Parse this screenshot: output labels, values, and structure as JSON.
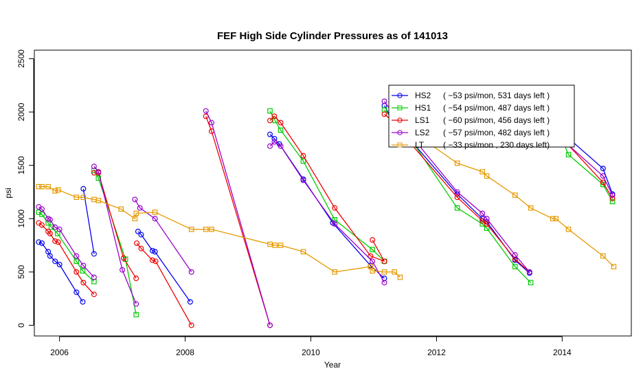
{
  "chart_data": {
    "type": "line",
    "title": "FEF High Side Cylinder Pressures as of  141013",
    "xlabel": "Year",
    "ylabel": "psi",
    "xlim": [
      2005.6,
      2015.1
    ],
    "ylim": [
      -100,
      2580
    ],
    "xticks": [
      2006,
      2008,
      2010,
      2012,
      2014
    ],
    "yticks": [
      0,
      500,
      1000,
      1500,
      2000,
      2500
    ],
    "grid": false,
    "legend_position": "top-right",
    "series": [
      {
        "name": "HS2",
        "legend_text": "( −53 psi/mon, 531 days left )",
        "color": "#0000ee",
        "marker": "circle",
        "segments": [
          [
            [
              2005.67,
              780
            ],
            [
              2005.72,
              770
            ],
            [
              2005.82,
              690
            ],
            [
              2005.85,
              650
            ],
            [
              2005.93,
              600
            ],
            [
              2006.0,
              570
            ],
            [
              2006.27,
              310
            ],
            [
              2006.37,
              220
            ]
          ],
          [
            [
              2006.38,
              1280
            ],
            [
              2006.55,
              670
            ]
          ],
          [
            [
              2007.25,
              880
            ],
            [
              2007.3,
              850
            ],
            [
              2007.48,
              700
            ],
            [
              2007.52,
              690
            ],
            [
              2008.08,
              220
            ]
          ],
          [
            [
              2009.35,
              1790
            ],
            [
              2009.42,
              1750
            ],
            [
              2009.5,
              1700
            ],
            [
              2009.88,
              1370
            ],
            [
              2010.35,
              960
            ],
            [
              2010.95,
              560
            ],
            [
              2011.17,
              440
            ]
          ],
          [
            [
              2011.17,
              2060
            ],
            [
              2011.3,
              1920
            ],
            [
              2011.45,
              1830
            ],
            [
              2012.33,
              1230
            ],
            [
              2012.73,
              1000
            ],
            [
              2012.8,
              970
            ],
            [
              2013.25,
              610
            ],
            [
              2013.48,
              490
            ]
          ],
          [
            [
              2013.85,
              1930
            ],
            [
              2014.05,
              1780
            ],
            [
              2014.65,
              1470
            ],
            [
              2014.8,
              1230
            ]
          ]
        ]
      },
      {
        "name": "HS1",
        "legend_text": "( −54 psi/mon, 487 days left )",
        "color": "#00cc00",
        "marker": "square",
        "segments": [
          [
            [
              2005.67,
              1060
            ],
            [
              2005.72,
              1040
            ],
            [
              2005.82,
              960
            ],
            [
              2005.87,
              920
            ],
            [
              2005.97,
              860
            ],
            [
              2006.27,
              600
            ],
            [
              2006.37,
              510
            ],
            [
              2006.55,
              410
            ]
          ],
          [
            [
              2006.55,
              1450
            ],
            [
              2006.62,
              1380
            ],
            [
              2007.05,
              620
            ],
            [
              2007.22,
              100
            ]
          ],
          [
            [
              2009.35,
              2010
            ],
            [
              2009.43,
              1920
            ],
            [
              2009.52,
              1830
            ],
            [
              2009.88,
              1540
            ],
            [
              2010.38,
              990
            ],
            [
              2010.98,
              710
            ],
            [
              2011.17,
              600
            ]
          ],
          [
            [
              2011.17,
              2020
            ],
            [
              2011.33,
              1920
            ],
            [
              2011.48,
              1840
            ],
            [
              2012.33,
              1100
            ],
            [
              2012.73,
              950
            ],
            [
              2012.8,
              910
            ],
            [
              2013.25,
              550
            ],
            [
              2013.5,
              400
            ]
          ],
          [
            [
              2013.85,
              1960
            ],
            [
              2014.1,
              1600
            ],
            [
              2014.65,
              1320
            ],
            [
              2014.8,
              1160
            ]
          ]
        ]
      },
      {
        "name": "LS1",
        "legend_text": "( −60 psi/mon, 456 days left )",
        "color": "#ee0000",
        "marker": "circle",
        "segments": [
          [
            [
              2005.67,
              960
            ],
            [
              2005.72,
              940
            ],
            [
              2005.82,
              880
            ],
            [
              2005.85,
              860
            ],
            [
              2005.93,
              790
            ],
            [
              2005.98,
              780
            ],
            [
              2006.27,
              500
            ],
            [
              2006.38,
              400
            ],
            [
              2006.55,
              290
            ]
          ],
          [
            [
              2006.55,
              1430
            ],
            [
              2006.62,
              1430
            ],
            [
              2007.02,
              630
            ],
            [
              2007.22,
              440
            ]
          ],
          [
            [
              2007.23,
              770
            ],
            [
              2007.3,
              720
            ],
            [
              2007.48,
              610
            ],
            [
              2007.53,
              600
            ],
            [
              2008.1,
              0
            ]
          ],
          [
            [
              2008.33,
              1960
            ],
            [
              2008.42,
              1820
            ],
            [
              2009.35,
              0
            ]
          ],
          [
            [
              2009.35,
              1920
            ],
            [
              2009.42,
              1960
            ],
            [
              2009.52,
              1900
            ],
            [
              2009.88,
              1590
            ],
            [
              2010.38,
              1100
            ],
            [
              2010.95,
              650
            ],
            [
              2011.17,
              600
            ]
          ],
          [
            [
              2010.98,
              800
            ],
            [
              2011.17,
              600
            ]
          ],
          [
            [
              2011.17,
              1980
            ],
            [
              2011.33,
              1900
            ],
            [
              2011.45,
              1800
            ],
            [
              2012.33,
              1200
            ],
            [
              2012.73,
              980
            ],
            [
              2012.8,
              950
            ],
            [
              2013.25,
              620
            ],
            [
              2013.48,
              500
            ]
          ],
          [
            [
              2013.85,
              1900
            ],
            [
              2014.05,
              1720
            ],
            [
              2014.65,
              1340
            ],
            [
              2014.8,
              1190
            ]
          ]
        ]
      },
      {
        "name": "LS2",
        "legend_text": "( −57 psi/mon, 482 days left )",
        "color": "#9900cc",
        "marker": "circle",
        "segments": [
          [
            [
              2005.67,
              1110
            ],
            [
              2005.72,
              1090
            ],
            [
              2005.82,
              1000
            ],
            [
              2005.85,
              990
            ],
            [
              2005.93,
              920
            ],
            [
              2006.0,
              900
            ],
            [
              2006.27,
              650
            ],
            [
              2006.38,
              560
            ],
            [
              2006.55,
              450
            ]
          ],
          [
            [
              2006.55,
              1490
            ],
            [
              2006.62,
              1440
            ],
            [
              2007.0,
              520
            ],
            [
              2007.22,
              200
            ]
          ],
          [
            [
              2007.2,
              1180
            ],
            [
              2007.28,
              1100
            ],
            [
              2007.52,
              1000
            ],
            [
              2008.1,
              500
            ]
          ],
          [
            [
              2008.33,
              2010
            ],
            [
              2008.42,
              1900
            ],
            [
              2009.35,
              0
            ]
          ],
          [
            [
              2009.35,
              1680
            ],
            [
              2009.42,
              1720
            ],
            [
              2009.52,
              1680
            ],
            [
              2009.88,
              1360
            ],
            [
              2010.38,
              950
            ],
            [
              2010.98,
              600
            ],
            [
              2011.17,
              400
            ]
          ],
          [
            [
              2011.17,
              2100
            ],
            [
              2011.33,
              1970
            ],
            [
              2011.48,
              1860
            ],
            [
              2012.33,
              1250
            ],
            [
              2012.73,
              1050
            ],
            [
              2012.8,
              1000
            ],
            [
              2013.25,
              660
            ],
            [
              2013.48,
              500
            ]
          ],
          [
            [
              2013.85,
              1970
            ],
            [
              2014.08,
              1700
            ],
            [
              2014.65,
              1400
            ],
            [
              2014.8,
              1220
            ]
          ]
        ]
      },
      {
        "name": "LT",
        "legend_text": "( −33 psi/mon , 230 days left)",
        "color": "#e69900",
        "marker": "square",
        "segments": [
          [
            [
              2005.67,
              1300
            ],
            [
              2005.72,
              1300
            ],
            [
              2005.82,
              1300
            ],
            [
              2005.93,
              1260
            ],
            [
              2005.98,
              1270
            ],
            [
              2006.27,
              1200
            ],
            [
              2006.38,
              1200
            ],
            [
              2006.55,
              1180
            ],
            [
              2006.62,
              1170
            ],
            [
              2006.98,
              1090
            ],
            [
              2007.2,
              1000
            ],
            [
              2007.22,
              1050
            ],
            [
              2007.52,
              1060
            ],
            [
              2008.1,
              900
            ],
            [
              2008.33,
              900
            ],
            [
              2008.42,
              900
            ],
            [
              2009.35,
              760
            ],
            [
              2009.43,
              750
            ],
            [
              2009.52,
              750
            ],
            [
              2009.88,
              690
            ],
            [
              2010.38,
              500
            ],
            [
              2010.95,
              550
            ],
            [
              2010.98,
              510
            ],
            [
              2011.17,
              500
            ],
            [
              2011.33,
              500
            ],
            [
              2011.42,
              450
            ]
          ],
          [
            [
              2011.48,
              1870
            ],
            [
              2012.33,
              1520
            ],
            [
              2012.73,
              1440
            ],
            [
              2012.8,
              1400
            ],
            [
              2013.25,
              1220
            ],
            [
              2013.5,
              1100
            ],
            [
              2013.85,
              1000
            ],
            [
              2013.9,
              1000
            ],
            [
              2014.1,
              900
            ],
            [
              2014.65,
              650
            ],
            [
              2014.82,
              550
            ]
          ]
        ]
      }
    ]
  }
}
